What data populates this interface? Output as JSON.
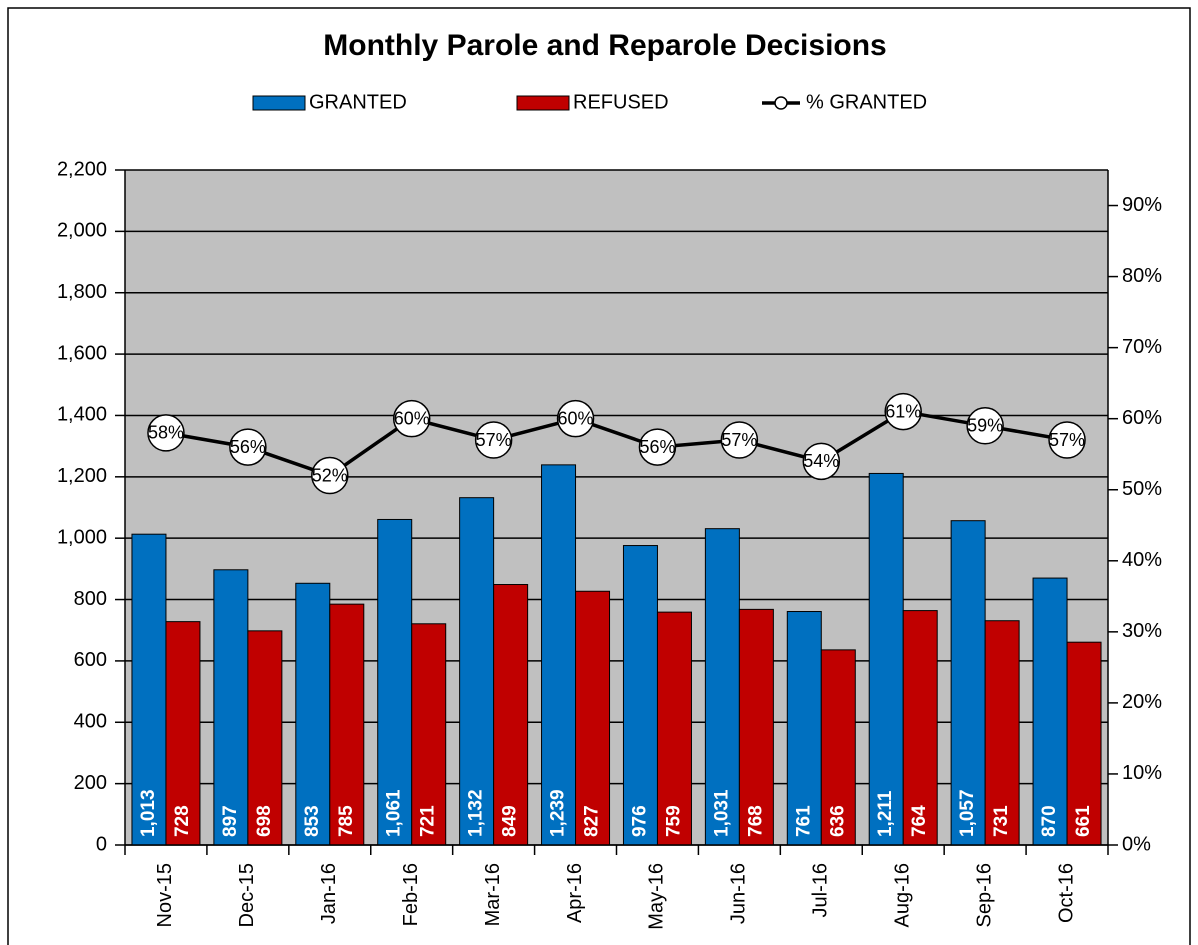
{
  "chart_data": {
    "type": "bar",
    "title": "Monthly Parole and Reparole Decisions",
    "categories": [
      "Nov-15",
      "Dec-15",
      "Jan-16",
      "Feb-16",
      "Mar-16",
      "Apr-16",
      "May-16",
      "Jun-16",
      "Jul-16",
      "Aug-16",
      "Sep-16",
      "Oct-16"
    ],
    "series": [
      {
        "name": "GRANTED",
        "type": "bar",
        "color": "#0070c0",
        "values": [
          1013,
          897,
          853,
          1061,
          1132,
          1239,
          976,
          1031,
          761,
          1211,
          1057,
          870
        ],
        "value_labels": [
          "1,013",
          "897",
          "853",
          "1,061",
          "1,132",
          "1,239",
          "976",
          "1,031",
          "761",
          "1,211",
          "1,057",
          "870"
        ]
      },
      {
        "name": "REFUSED",
        "type": "bar",
        "color": "#c00000",
        "values": [
          728,
          698,
          785,
          721,
          849,
          827,
          759,
          768,
          636,
          764,
          731,
          661
        ]
      },
      {
        "name": "% GRANTED",
        "type": "line",
        "axis": "y2",
        "color": "#000000",
        "values": [
          58,
          56,
          52,
          60,
          57,
          60,
          56,
          57,
          54,
          61,
          59,
          57
        ],
        "value_labels": [
          "58%",
          "56%",
          "52%",
          "60%",
          "57%",
          "60%",
          "56%",
          "57%",
          "54%",
          "61%",
          "59%",
          "57%"
        ]
      }
    ],
    "ylim": [
      0,
      2200
    ],
    "yticks": [
      0,
      200,
      400,
      600,
      800,
      {
        "value": 1000,
        "label": "1,000"
      },
      {
        "value": 1200,
        "label": "1,200"
      },
      {
        "value": 1400,
        "label": "1,400"
      },
      {
        "value": 1600,
        "label": "1,600"
      },
      {
        "value": 1800,
        "label": "1,800"
      },
      {
        "value": 2000,
        "label": "2,000"
      },
      {
        "value": 2200,
        "label": "2,200"
      }
    ],
    "y2lim": [
      0,
      95
    ],
    "y2ticks": [
      {
        "value": 0,
        "label": "0%"
      },
      {
        "value": 10,
        "label": "10%"
      },
      {
        "value": 20,
        "label": "20%"
      },
      {
        "value": 30,
        "label": "30%"
      },
      {
        "value": 40,
        "label": "40%"
      },
      {
        "value": 50,
        "label": "50%"
      },
      {
        "value": 60,
        "label": "60%"
      },
      {
        "value": 70,
        "label": "70%"
      },
      {
        "value": 80,
        "label": "80%"
      },
      {
        "value": 90,
        "label": "90%"
      }
    ],
    "grid": true
  }
}
